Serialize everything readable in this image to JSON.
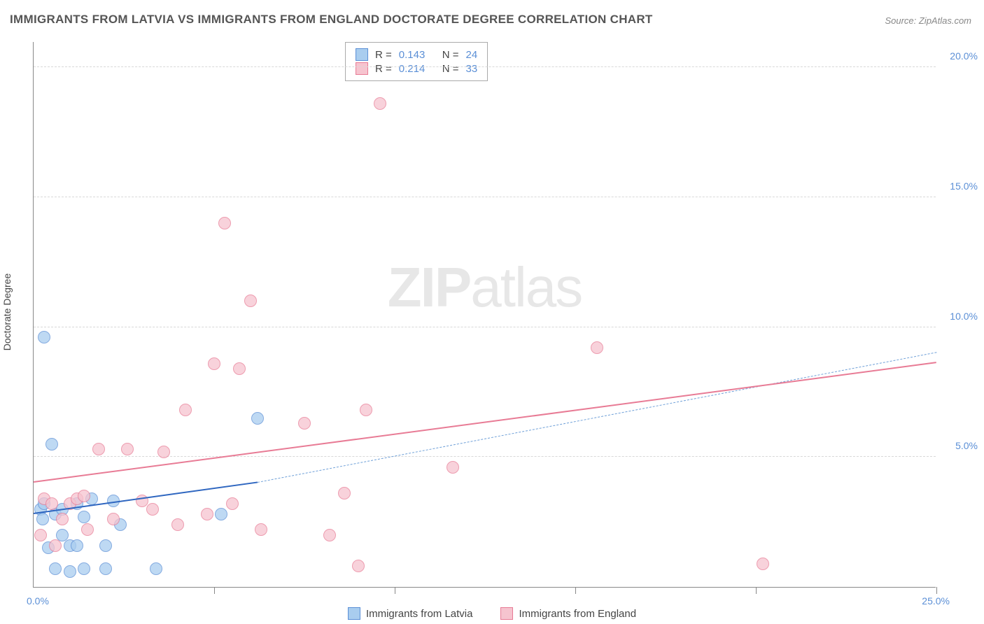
{
  "title": "IMMIGRANTS FROM LATVIA VS IMMIGRANTS FROM ENGLAND DOCTORATE DEGREE CORRELATION CHART",
  "source": "Source: ZipAtlas.com",
  "watermark_bold": "ZIP",
  "watermark_light": "atlas",
  "yaxis_label": "Doctorate Degree",
  "chart": {
    "type": "scatter",
    "background_color": "#ffffff",
    "grid_color": "#d8d8d8",
    "axis_color": "#888888",
    "tick_label_color": "#5b8fd6",
    "xlim": [
      0,
      25
    ],
    "ylim": [
      0,
      21
    ],
    "xticks": [
      0,
      5,
      10,
      15,
      20,
      25
    ],
    "yticks": [
      5,
      10,
      15,
      20
    ],
    "ytick_labels": [
      "5.0%",
      "10.0%",
      "15.0%",
      "20.0%"
    ],
    "x_start_label": "0.0%",
    "x_end_label": "25.0%",
    "point_radius": 9,
    "point_fill_opacity": 0.35,
    "series": [
      {
        "name": "Immigrants from Latvia",
        "fill": "#a9cdef",
        "stroke": "#5b8fd6",
        "R": "0.143",
        "N": "24",
        "trend": {
          "x1": 0,
          "y1": 2.8,
          "x2": 6.2,
          "y2": 4.0,
          "dash_ext_x2": 25,
          "dash_ext_y2": 9.0,
          "width": 2,
          "color": "#2e66c0",
          "dash_color": "#6fa0d8"
        },
        "points": [
          [
            0.2,
            3.0
          ],
          [
            0.25,
            2.6
          ],
          [
            0.3,
            3.2
          ],
          [
            0.3,
            9.6
          ],
          [
            0.4,
            1.5
          ],
          [
            0.5,
            5.5
          ],
          [
            0.6,
            2.8
          ],
          [
            0.6,
            0.7
          ],
          [
            0.8,
            3.0
          ],
          [
            0.8,
            2.0
          ],
          [
            1.0,
            1.6
          ],
          [
            1.0,
            0.6
          ],
          [
            1.2,
            3.2
          ],
          [
            1.2,
            1.6
          ],
          [
            1.4,
            2.7
          ],
          [
            1.4,
            0.7
          ],
          [
            1.6,
            3.4
          ],
          [
            2.0,
            1.6
          ],
          [
            2.0,
            0.7
          ],
          [
            2.2,
            3.3
          ],
          [
            2.4,
            2.4
          ],
          [
            3.4,
            0.7
          ],
          [
            5.2,
            2.8
          ],
          [
            6.2,
            6.5
          ]
        ]
      },
      {
        "name": "Immigrants from England",
        "fill": "#f6c4cf",
        "stroke": "#e87b95",
        "R": "0.214",
        "N": "33",
        "trend": {
          "x1": 0,
          "y1": 4.0,
          "x2": 25,
          "y2": 8.6,
          "width": 2,
          "color": "#e87b95"
        },
        "points": [
          [
            0.2,
            2.0
          ],
          [
            0.3,
            3.4
          ],
          [
            0.5,
            3.2
          ],
          [
            0.6,
            1.6
          ],
          [
            0.8,
            2.6
          ],
          [
            1.0,
            3.2
          ],
          [
            1.2,
            3.4
          ],
          [
            1.4,
            3.5
          ],
          [
            1.5,
            2.2
          ],
          [
            1.8,
            5.3
          ],
          [
            2.2,
            2.6
          ],
          [
            2.6,
            5.3
          ],
          [
            3.0,
            3.3
          ],
          [
            3.3,
            3.0
          ],
          [
            3.6,
            5.2
          ],
          [
            4.0,
            2.4
          ],
          [
            4.2,
            6.8
          ],
          [
            4.8,
            2.8
          ],
          [
            5.0,
            8.6
          ],
          [
            5.3,
            14.0
          ],
          [
            5.5,
            3.2
          ],
          [
            5.7,
            8.4
          ],
          [
            6.0,
            11.0
          ],
          [
            6.3,
            2.2
          ],
          [
            7.5,
            6.3
          ],
          [
            8.2,
            2.0
          ],
          [
            8.6,
            3.6
          ],
          [
            9.0,
            0.8
          ],
          [
            9.2,
            6.8
          ],
          [
            9.6,
            18.6
          ],
          [
            11.6,
            4.6
          ],
          [
            15.6,
            9.2
          ],
          [
            20.2,
            0.9
          ]
        ]
      }
    ]
  },
  "legend_stats": {
    "r_label": "R =",
    "n_label": "N ="
  }
}
